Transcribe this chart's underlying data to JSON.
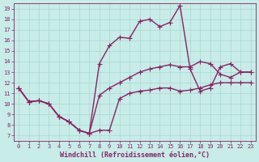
{
  "line1_x": [
    0,
    1,
    2,
    3,
    4,
    5,
    6,
    7,
    8,
    9,
    10,
    11,
    12,
    13,
    14,
    15,
    16,
    17,
    18,
    19,
    20,
    21,
    22,
    23
  ],
  "line1_y": [
    11.5,
    10.2,
    10.3,
    10.0,
    8.8,
    8.3,
    7.5,
    7.2,
    7.5,
    7.5,
    10.5,
    11.0,
    11.2,
    11.3,
    11.5,
    11.5,
    11.2,
    11.3,
    11.5,
    11.8,
    12.0,
    12.0,
    12.0,
    12.0
  ],
  "line2_x": [
    0,
    1,
    2,
    3,
    4,
    5,
    6,
    7,
    8,
    9,
    10,
    11,
    12,
    13,
    14,
    15,
    16,
    17,
    18,
    19,
    20,
    21,
    22,
    23
  ],
  "line2_y": [
    11.5,
    10.2,
    10.3,
    10.0,
    8.8,
    8.3,
    7.5,
    7.2,
    13.8,
    15.5,
    16.3,
    16.2,
    17.8,
    18.0,
    17.3,
    17.7,
    19.3,
    13.3,
    11.2,
    11.5,
    13.5,
    13.8,
    13.0,
    13.0
  ],
  "line3_x": [
    0,
    1,
    2,
    3,
    4,
    5,
    6,
    7,
    8,
    9,
    10,
    11,
    12,
    13,
    14,
    15,
    16,
    17,
    18,
    19,
    20,
    21,
    22,
    23
  ],
  "line3_y": [
    11.5,
    10.2,
    10.3,
    10.0,
    8.8,
    8.3,
    7.5,
    7.2,
    10.8,
    11.5,
    12.0,
    12.5,
    13.0,
    13.3,
    13.5,
    13.7,
    13.5,
    13.5,
    14.0,
    13.8,
    12.8,
    12.5,
    13.0,
    13.0
  ],
  "color": "#882266",
  "bg_color": "#c8ece8",
  "grid_color": "#a8d8d0",
  "xlim": [
    -0.5,
    23.5
  ],
  "ylim": [
    6.5,
    19.5
  ],
  "yticks": [
    7,
    8,
    9,
    10,
    11,
    12,
    13,
    14,
    15,
    16,
    17,
    18,
    19
  ],
  "xticks": [
    0,
    1,
    2,
    3,
    4,
    5,
    6,
    7,
    8,
    9,
    10,
    11,
    12,
    13,
    14,
    15,
    16,
    17,
    18,
    19,
    20,
    21,
    22,
    23
  ],
  "xlabel": "Windchill (Refroidissement éolien,°C)",
  "marker": "+",
  "marker_size": 4,
  "linewidth": 1.0,
  "tick_fontsize": 5.0,
  "label_fontsize": 6.0
}
